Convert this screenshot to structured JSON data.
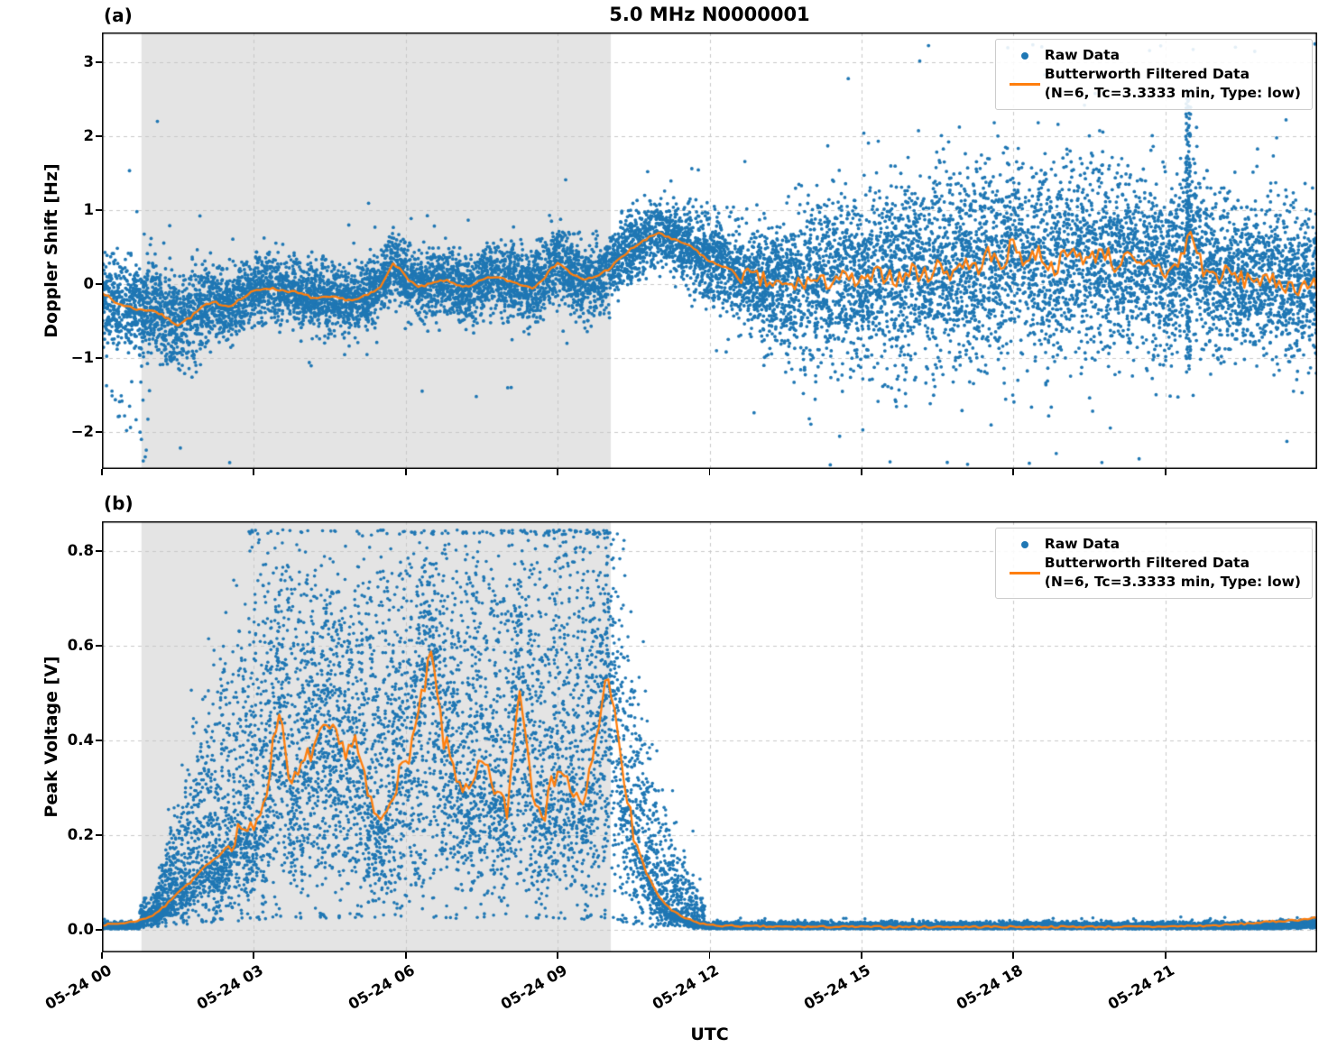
{
  "figure": {
    "title": "5.0 MHz N0000001",
    "xlabel": "UTC",
    "panel_a_tag": "(a)",
    "panel_b_tag": "(b)"
  },
  "colors": {
    "raw": "#1f77b4",
    "filtered": "#ff7f0e",
    "shade": "#e4e4e4",
    "grid": "#c9c9c9",
    "spine": "#000000",
    "background": "#ffffff"
  },
  "chart_data": [
    {
      "type": "scatter",
      "panel": "a",
      "panel_tag": "(a)",
      "title": "5.0 MHz N0000001",
      "ylabel": "Doppler Shift [Hz]",
      "ylim": [
        -2.5,
        3.4
      ],
      "yticks": [
        3,
        2,
        1,
        0,
        -1,
        -2
      ],
      "ytick_labels": [
        "3",
        "2",
        "1",
        "0",
        "−1",
        "−2"
      ],
      "xlim_hours": [
        0,
        24
      ],
      "xticks_hours": [
        0,
        3,
        6,
        9,
        12,
        15,
        18,
        21
      ],
      "xtick_labels": [
        "05-24 00",
        "05-24 03",
        "05-24 06",
        "05-24 09",
        "05-24 12",
        "05-24 15",
        "05-24 18",
        "05-24 21"
      ],
      "grid": true,
      "shaded_region_hours": [
        0.78,
        10.05
      ],
      "legend": {
        "raw_label": "Raw Data",
        "filtered_label": "Butterworth Filtered Data",
        "filtered_sublabel": "(N=6, Tc=3.3333 min, Type: low)"
      },
      "filtered_line": {
        "step_hours": 0.25,
        "values": [
          -0.1,
          -0.25,
          -0.3,
          -0.35,
          -0.35,
          -0.45,
          -0.55,
          -0.45,
          -0.3,
          -0.25,
          -0.3,
          -0.2,
          -0.1,
          -0.05,
          -0.08,
          -0.1,
          -0.15,
          -0.2,
          -0.18,
          -0.2,
          -0.22,
          -0.15,
          -0.05,
          0.3,
          0.1,
          -0.05,
          0.0,
          0.05,
          0.0,
          -0.05,
          0.05,
          0.1,
          0.05,
          0.0,
          -0.05,
          0.1,
          0.3,
          0.15,
          0.05,
          0.1,
          0.2,
          0.35,
          0.5,
          0.6,
          0.7,
          0.6,
          0.55,
          0.45,
          0.3,
          0.25,
          0.15,
          0.1,
          0.05,
          0.0,
          -0.05,
          0.0,
          0.05,
          0.0,
          0.1,
          0.05,
          0.0,
          0.1,
          0.15,
          0.05,
          0.2,
          0.1,
          0.25,
          0.15,
          0.3,
          0.2,
          0.4,
          0.25,
          0.55,
          0.3,
          0.45,
          0.2,
          0.35,
          0.45,
          0.3,
          0.5,
          0.25,
          0.35,
          0.2,
          0.3,
          0.15,
          0.25,
          0.7,
          0.2,
          0.1,
          0.15,
          0.05,
          0.1,
          0.0,
          0.05,
          -0.05,
          0.0,
          -0.05
        ],
        "jitter": {
          "split_hours": 12.5,
          "amp_before": 0.02,
          "amp_after": 0.13
        }
      },
      "raw_scatter": {
        "count": 13000,
        "marker_px": 1.9,
        "sigma_step_hours": 1,
        "sigma": [
          0.3,
          0.32,
          0.28,
          0.22,
          0.22,
          0.22,
          0.22,
          0.22,
          0.24,
          0.26,
          0.24,
          0.22,
          0.28,
          0.35,
          0.55,
          0.6,
          0.65,
          0.65,
          0.68,
          0.65,
          0.62,
          0.6,
          0.55,
          0.5,
          0.45
        ],
        "outlier_prob": 0.012,
        "outlier_scale": 2.6,
        "features": {
          "early_low_outliers": {
            "t_min": 0.15,
            "t_max": 1.0,
            "y_min": -2.35,
            "y_max": -1.2,
            "count": 22
          },
          "spike_column": {
            "t": 21.45,
            "halfwidth": 0.05,
            "y_min": -1.2,
            "y_max": 2.65,
            "count": 160
          },
          "top_outlier": {
            "t": 21.55,
            "y": 3.17
          }
        }
      }
    },
    {
      "type": "scatter",
      "panel": "b",
      "panel_tag": "(b)",
      "ylabel": "Peak Voltage [V]",
      "ylim": [
        -0.048,
        0.863
      ],
      "yticks": [
        0.8,
        0.6,
        0.4,
        0.2,
        0.0
      ],
      "ytick_labels": [
        "0.8",
        "0.6",
        "0.4",
        "0.2",
        "0.0"
      ],
      "xlim_hours": [
        0,
        24
      ],
      "xticks_hours": [
        0,
        3,
        6,
        9,
        12,
        15,
        18,
        21
      ],
      "xtick_labels": [
        "05-24 00",
        "05-24 03",
        "05-24 06",
        "05-24 09",
        "05-24 12",
        "05-24 15",
        "05-24 18",
        "05-24 21"
      ],
      "grid": true,
      "shaded_region_hours": [
        0.78,
        10.05
      ],
      "legend": {
        "raw_label": "Raw Data",
        "filtered_label": "Butterworth Filtered Data",
        "filtered_sublabel": "(N=6, Tc=3.3333 min, Type: low)"
      },
      "filtered_line": {
        "step_hours": 0.25,
        "values": [
          0.01,
          0.012,
          0.015,
          0.02,
          0.03,
          0.05,
          0.08,
          0.1,
          0.13,
          0.15,
          0.18,
          0.22,
          0.2,
          0.3,
          0.47,
          0.3,
          0.35,
          0.4,
          0.42,
          0.38,
          0.4,
          0.28,
          0.22,
          0.3,
          0.35,
          0.45,
          0.58,
          0.4,
          0.33,
          0.28,
          0.35,
          0.3,
          0.25,
          0.52,
          0.3,
          0.25,
          0.35,
          0.3,
          0.25,
          0.4,
          0.55,
          0.35,
          0.2,
          0.12,
          0.07,
          0.04,
          0.025,
          0.015,
          0.01,
          0.008,
          0.008,
          0.007,
          0.007,
          0.006,
          0.006,
          0.006,
          0.006,
          0.006,
          0.006,
          0.006,
          0.006,
          0.006,
          0.006,
          0.006,
          0.006,
          0.006,
          0.006,
          0.006,
          0.006,
          0.006,
          0.006,
          0.006,
          0.006,
          0.006,
          0.006,
          0.006,
          0.006,
          0.006,
          0.006,
          0.006,
          0.006,
          0.006,
          0.006,
          0.006,
          0.007,
          0.007,
          0.008,
          0.008,
          0.009,
          0.01,
          0.012,
          0.014,
          0.016,
          0.018,
          0.02,
          0.022,
          0.025
        ],
        "jitter": {
          "active_range_hours": [
            2.5,
            10.5
          ],
          "amp_active": 0.025,
          "amp_idle": 0.002
        }
      },
      "raw_scatter": {
        "count": 16000,
        "marker_px": 1.8,
        "env_step_hours": 1,
        "env_hi": [
          0.02,
          0.06,
          0.4,
          0.78,
          0.75,
          0.72,
          0.8,
          0.78,
          0.8,
          0.8,
          0.83,
          0.25,
          0.03,
          0.02,
          0.02,
          0.02,
          0.02,
          0.02,
          0.02,
          0.02,
          0.02,
          0.02,
          0.02,
          0.02,
          0.04
        ],
        "env_lo": [
          0.0,
          0.01,
          0.03,
          0.05,
          0.06,
          0.06,
          0.06,
          0.06,
          0.06,
          0.06,
          0.05,
          0.01,
          0.0,
          0.0,
          0.0,
          0.0,
          0.0,
          0.0,
          0.0,
          0.0,
          0.0,
          0.0,
          0.0,
          0.0,
          0.0
        ],
        "column_fill_prob": 0.05,
        "idle_band": {
          "base": 0.002,
          "spread": 0.006
        },
        "end_rise": {
          "start_hours": 23.2,
          "amp": 0.012
        }
      }
    }
  ]
}
